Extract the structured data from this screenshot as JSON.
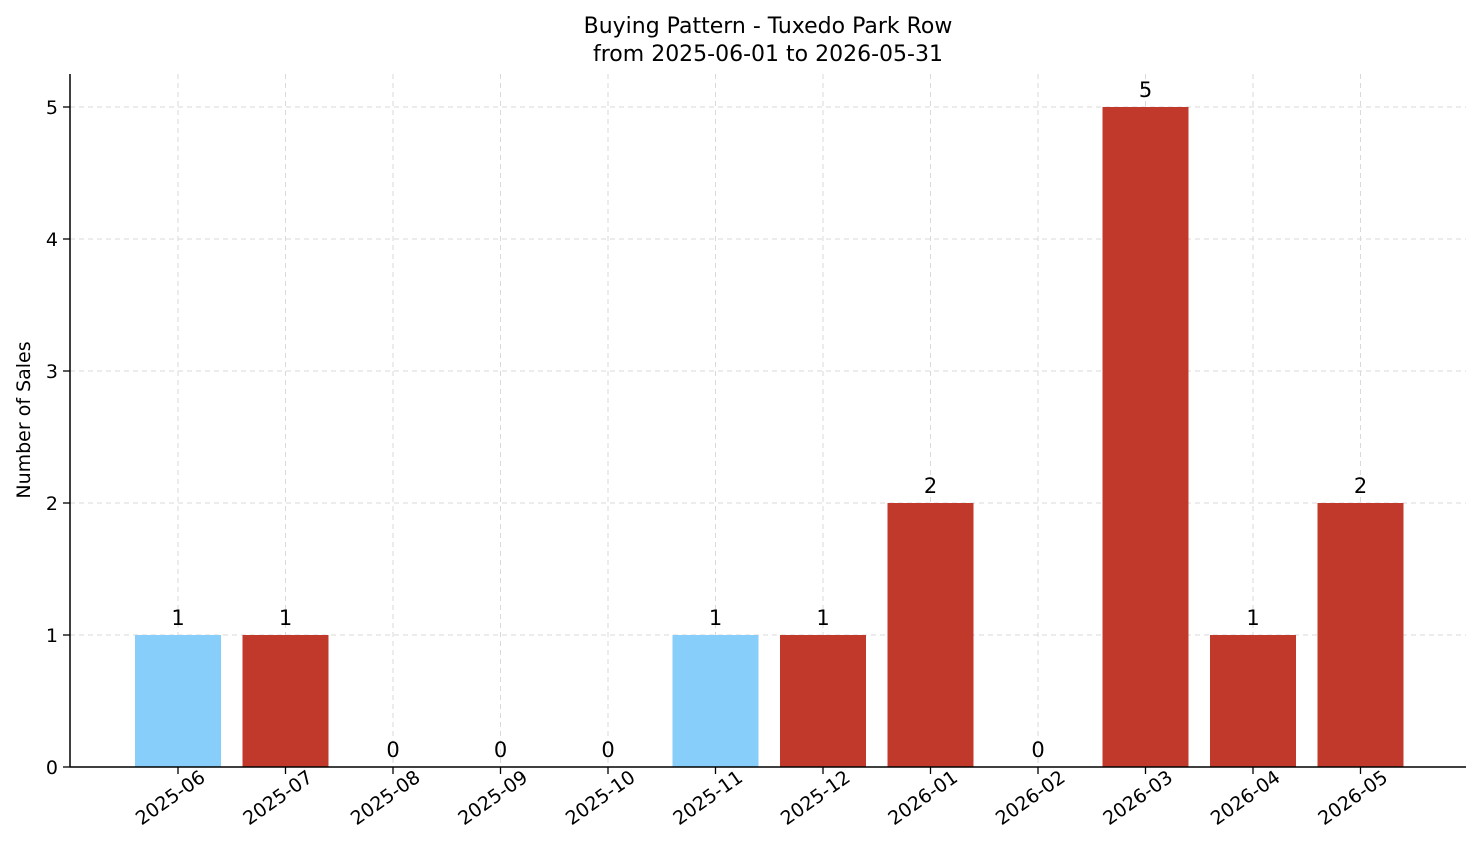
{
  "chart_data": {
    "type": "bar",
    "title": "Buying Pattern - Tuxedo Park Row",
    "subtitle": "from 2025-06-01 to 2026-05-31",
    "xlabel": "",
    "ylabel": "Number of Sales",
    "categories": [
      "2025-06",
      "2025-07",
      "2025-08",
      "2025-09",
      "2025-10",
      "2025-11",
      "2025-12",
      "2026-01",
      "2026-02",
      "2026-03",
      "2026-04",
      "2026-05"
    ],
    "values": [
      1,
      1,
      0,
      0,
      0,
      1,
      1,
      2,
      0,
      5,
      1,
      2
    ],
    "bar_colors": [
      "#87CEFA",
      "#C0392B",
      "#C0392B",
      "#C0392B",
      "#C0392B",
      "#87CEFA",
      "#C0392B",
      "#C0392B",
      "#C0392B",
      "#C0392B",
      "#C0392B",
      "#C0392B"
    ],
    "ylim": [
      0,
      5.25
    ],
    "yticks": [
      0,
      1,
      2,
      3,
      4,
      5
    ],
    "grid": true,
    "data_labels": true
  }
}
